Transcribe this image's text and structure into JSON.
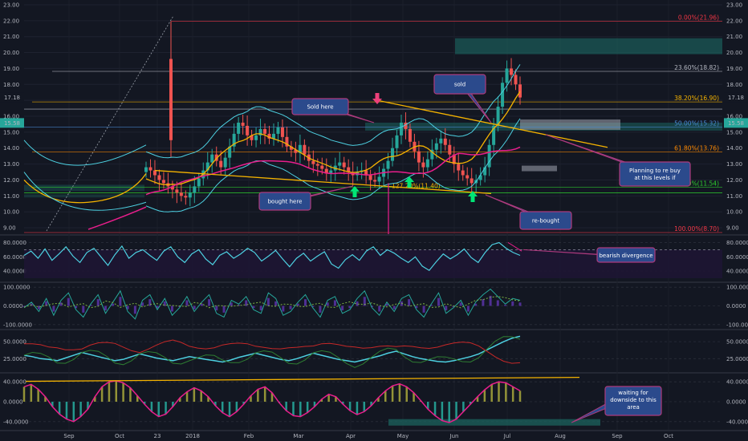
{
  "chart_data": [
    {
      "type": "candlestick",
      "panel": "price",
      "y_ticks": [
        "23.00",
        "22.00",
        "21.00",
        "20.00",
        "19.00",
        "18.00",
        "17.00",
        "16.00",
        "15.00",
        "14.00",
        "13.00",
        "12.00",
        "11.00",
        "10.00",
        "9.00"
      ],
      "ylim": [
        8.6,
        23.2
      ],
      "x_ticks": [
        "Sep",
        "Oct",
        "23",
        "2018",
        "Feb",
        "Mar",
        "Apr",
        "May",
        "Jun",
        "Jul",
        "Aug",
        "Sep",
        "Oct"
      ],
      "last_price": "17.18",
      "price_tag_left": "15.58",
      "price_tag_right": "15.58",
      "fib_levels": [
        {
          "label": "0.00%(21.96)",
          "value": 21.96,
          "color": "#f23645"
        },
        {
          "label": "23.60%(18.82)",
          "value": 18.82,
          "color": "#b2b5be"
        },
        {
          "label": "38.20%(16.90)",
          "value": 16.9,
          "color": "#f5b300"
        },
        {
          "label": "50.00%(15.32)",
          "value": 15.32,
          "color": "#4a8bd8"
        },
        {
          "label": "61.80%(13.76)",
          "value": 13.76,
          "color": "#ff8a00"
        },
        {
          "label": "78.60%(11.54)",
          "value": 11.54,
          "color": "#2ed12e"
        },
        {
          "label": "100.00%(8.70)",
          "value": 8.7,
          "color": "#f23645"
        }
      ],
      "inner_label": "127.20%(11.40)",
      "annotations": [
        {
          "text": [
            "Sold here"
          ]
        },
        {
          "text": [
            "sold"
          ]
        },
        {
          "text": [
            "bought here"
          ]
        },
        {
          "text": [
            "Planning to re buy",
            "at this levels if"
          ]
        },
        {
          "text": [
            "re-bought"
          ]
        }
      ],
      "closes": [
        12.8,
        12.6,
        12.3,
        12.0,
        11.8,
        11.6,
        11.4,
        11.2,
        11.0,
        10.9,
        11.2,
        11.6,
        12.1,
        12.6,
        13.1,
        13.6,
        13.2,
        12.8,
        13.4,
        14.1,
        14.9,
        15.6,
        15.4,
        14.8,
        14.5,
        14.8,
        15.2,
        14.9,
        14.6,
        14.9,
        15.3,
        14.7,
        14.1,
        13.9,
        13.7,
        14.2,
        13.6,
        13.2,
        13.0,
        12.9,
        12.7,
        12.4,
        12.6,
        12.9,
        13.1,
        12.8,
        12.5,
        12.3,
        12.5,
        12.6,
        12.3,
        12.0,
        11.9,
        12.2,
        12.7,
        13.2,
        14.0,
        14.8,
        15.6,
        15.2,
        14.4,
        13.8,
        13.1,
        12.8,
        13.3,
        13.9,
        14.3,
        14.6,
        14.2,
        13.6,
        13.0,
        12.6,
        12.3,
        12.1,
        11.8,
        12.0,
        12.3,
        12.8,
        14.2,
        15.4,
        16.6,
        18.1,
        19.0,
        18.6,
        18.0,
        17.18
      ]
    },
    {
      "type": "line",
      "panel": "oscillator_1",
      "y_ticks": [
        "80.0000",
        "60.0000",
        "40.0000"
      ],
      "ylim": [
        30,
        85
      ],
      "annotation": "bearish divergence",
      "values": [
        62,
        68,
        58,
        71,
        55,
        64,
        74,
        61,
        52,
        66,
        72,
        60,
        48,
        63,
        75,
        58,
        66,
        70,
        62,
        55,
        68,
        74,
        60,
        52,
        64,
        70,
        57,
        49,
        62,
        67,
        58,
        64,
        72,
        66,
        54,
        61,
        69,
        57,
        46,
        58,
        65,
        54,
        61,
        67,
        50,
        44,
        56,
        63,
        55,
        68,
        74,
        62,
        70,
        65,
        58,
        52,
        60,
        47,
        41,
        53,
        64,
        57,
        63,
        71,
        59,
        52,
        66,
        77,
        80,
        72,
        66,
        62
      ]
    },
    {
      "type": "line",
      "panel": "oscillator_2",
      "y_ticks": [
        "100.0000",
        "0.0000",
        "-100.0000"
      ],
      "ylim": [
        -105,
        105
      ],
      "values": [
        -10,
        20,
        -30,
        40,
        -50,
        30,
        70,
        -20,
        -60,
        10,
        60,
        -40,
        20,
        80,
        -30,
        -70,
        30,
        60,
        -20,
        40,
        -50,
        -10,
        50,
        -30,
        20,
        60,
        -40,
        -60,
        30,
        10,
        50,
        -20,
        -40,
        70,
        40,
        -50,
        -30,
        20,
        60,
        -10,
        -60,
        30,
        50,
        -40,
        -20,
        40,
        80,
        -10,
        -50,
        20,
        -30,
        40,
        60,
        -20,
        -60,
        10,
        70,
        -40,
        -10,
        30,
        -50,
        20,
        60,
        90,
        50,
        10,
        40,
        30
      ]
    },
    {
      "type": "line",
      "panel": "oscillator_3",
      "y_ticks": [
        "50.0000",
        "25.0000"
      ],
      "ylim": [
        10,
        62
      ],
      "values": [
        30,
        28,
        25,
        24,
        22,
        26,
        30,
        34,
        31,
        28,
        25,
        22,
        24,
        28,
        32,
        29,
        26,
        24,
        22,
        25,
        28,
        26,
        24,
        22,
        20,
        23,
        27,
        30,
        33,
        30,
        27,
        24,
        22,
        25,
        29,
        33,
        30,
        27,
        24,
        22,
        20,
        23,
        26,
        29,
        33,
        36,
        32,
        28,
        25,
        23,
        21,
        20,
        22,
        25,
        28,
        32,
        38,
        44,
        50,
        55,
        58
      ]
    },
    {
      "type": "bar",
      "panel": "oscillator_4",
      "y_ticks": [
        "40.0000",
        "0.0000",
        "-40.0000"
      ],
      "ylim": [
        -50,
        50
      ],
      "annotation": [
        "waiting for",
        "downside to this",
        "area"
      ],
      "values": [
        30,
        35,
        25,
        10,
        -10,
        -25,
        -35,
        -40,
        -30,
        -15,
        10,
        30,
        40,
        42,
        38,
        28,
        12,
        -5,
        -20,
        -30,
        -25,
        -10,
        8,
        20,
        28,
        22,
        10,
        -8,
        -22,
        -30,
        -20,
        -5,
        12,
        25,
        30,
        18,
        -2,
        -18,
        -28,
        -30,
        -22,
        -10,
        5,
        15,
        10,
        -5,
        -18,
        -26,
        -20,
        -8,
        8,
        22,
        32,
        36,
        30,
        18,
        2,
        -15,
        -28,
        -38,
        -42,
        -35,
        -20,
        -5,
        10,
        24,
        35,
        40,
        38,
        30,
        22
      ]
    }
  ]
}
